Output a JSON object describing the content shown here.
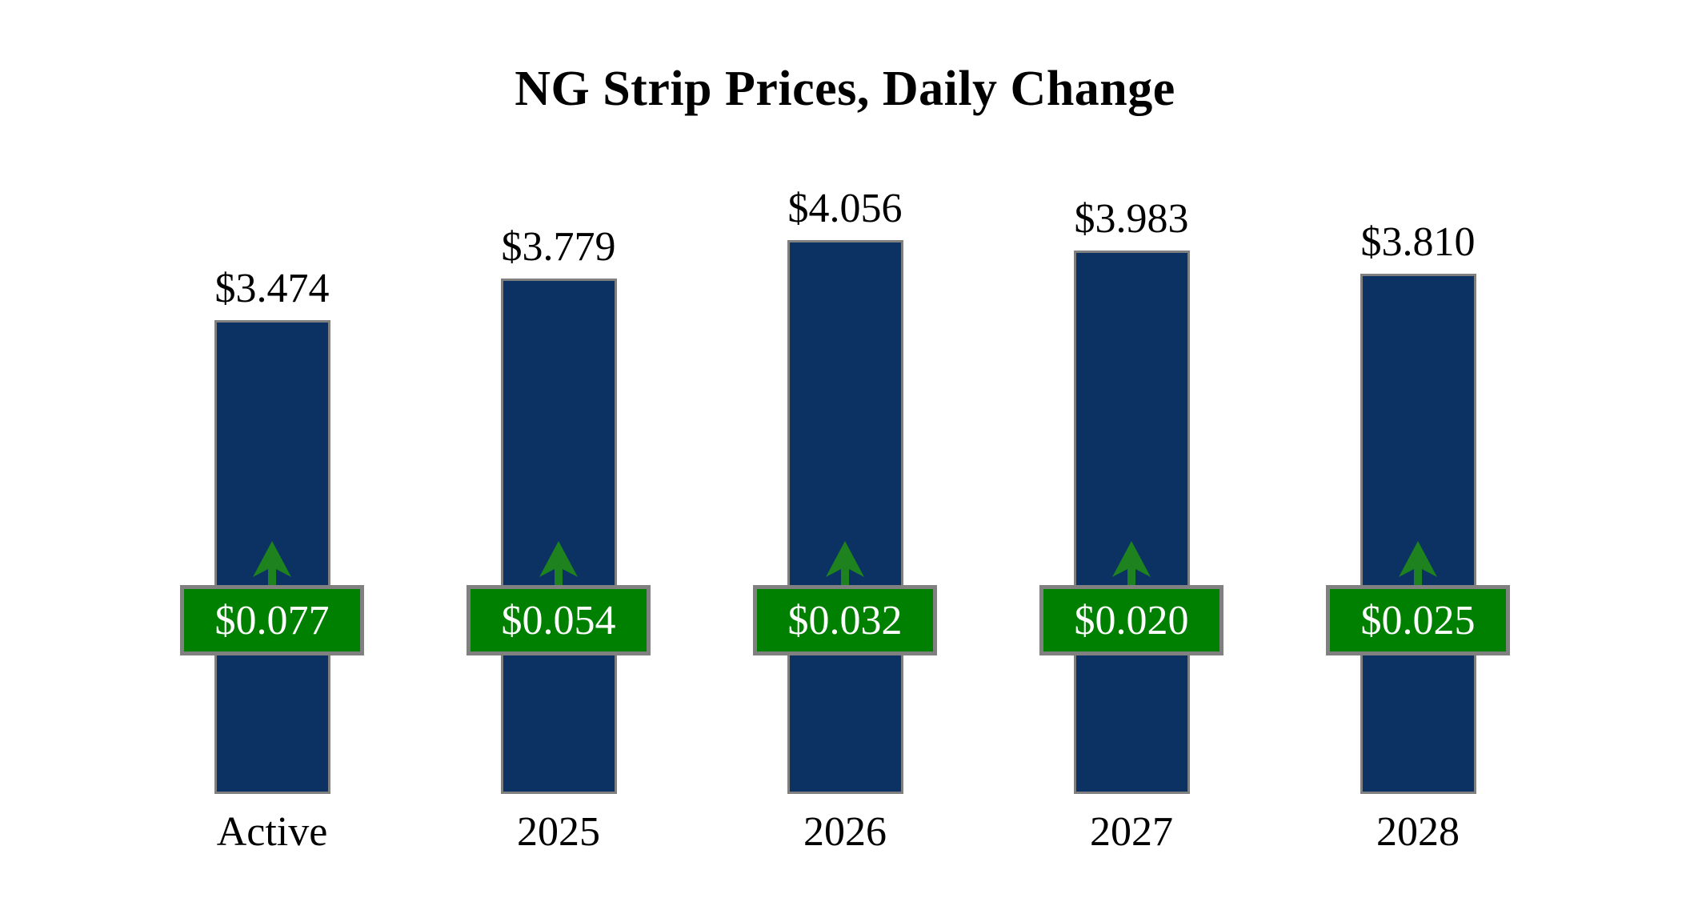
{
  "title": "NG Strip Prices, Daily Change",
  "colors": {
    "background": "#ffffff",
    "bar_fill": "#0b3262",
    "bar_border": "#808080",
    "badge_fill": "#008000",
    "badge_border": "#808080",
    "badge_text": "#ffffff",
    "arrow_green": "#1e821e",
    "label_text": "#000000"
  },
  "chart_data": {
    "type": "bar",
    "title": "NG Strip Prices, Daily Change",
    "categories": [
      "Active",
      "2025",
      "2026",
      "2027",
      "2028"
    ],
    "series": [
      {
        "name": "Strip Price",
        "values": [
          3.474,
          3.779,
          4.056,
          3.983,
          3.81
        ],
        "labels": [
          "$3.474",
          "$3.779",
          "$4.056",
          "$3.983",
          "$3.810"
        ],
        "label_position": "above-bar"
      },
      {
        "name": "Daily Change",
        "values": [
          0.077,
          0.054,
          0.032,
          0.02,
          0.025
        ],
        "labels": [
          "$0.077",
          "$0.054",
          "$0.032",
          "$0.020",
          "$0.025"
        ],
        "direction": "up",
        "label_position": "badge-on-bar"
      }
    ],
    "xlabel": "",
    "ylabel": "",
    "ylim": [
      0,
      4.3
    ],
    "grid": false,
    "legend": false,
    "axis_lines": false
  }
}
